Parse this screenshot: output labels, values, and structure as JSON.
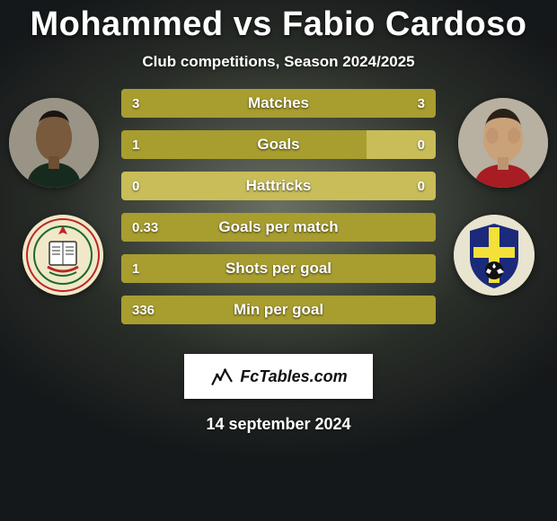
{
  "title": "Mohammed vs Fabio Cardoso",
  "subtitle": "Club competitions, Season 2024/2025",
  "date": "14 september 2024",
  "brand": "FcTables.com",
  "colors": {
    "bar_fill": "#a89d2f",
    "bar_track": "#c8bd58",
    "text": "#ffffff"
  },
  "players": {
    "left": {
      "name": "Mohammed"
    },
    "right": {
      "name": "Fabio Cardoso"
    }
  },
  "clubs": {
    "left": {
      "name": "Ittihad Kalba",
      "bg": "#f0e8c8"
    },
    "right": {
      "name": "NK Inter Zapresic",
      "bg": "#e8e4d0",
      "shield_fill": "#1b2a7a",
      "shield_cross": "#f4e038"
    }
  },
  "stats": [
    {
      "label": "Matches",
      "left_val": "3",
      "right_val": "3",
      "left_pct": 50,
      "right_pct": 50
    },
    {
      "label": "Goals",
      "left_val": "1",
      "right_val": "0",
      "left_pct": 78,
      "right_pct": 0
    },
    {
      "label": "Hattricks",
      "left_val": "0",
      "right_val": "0",
      "left_pct": 0,
      "right_pct": 0
    },
    {
      "label": "Goals per match",
      "left_val": "0.33",
      "right_val": "",
      "left_pct": 100,
      "right_pct": 0
    },
    {
      "label": "Shots per goal",
      "left_val": "1",
      "right_val": "",
      "left_pct": 100,
      "right_pct": 0
    },
    {
      "label": "Min per goal",
      "left_val": "336",
      "right_val": "",
      "left_pct": 100,
      "right_pct": 0
    }
  ]
}
